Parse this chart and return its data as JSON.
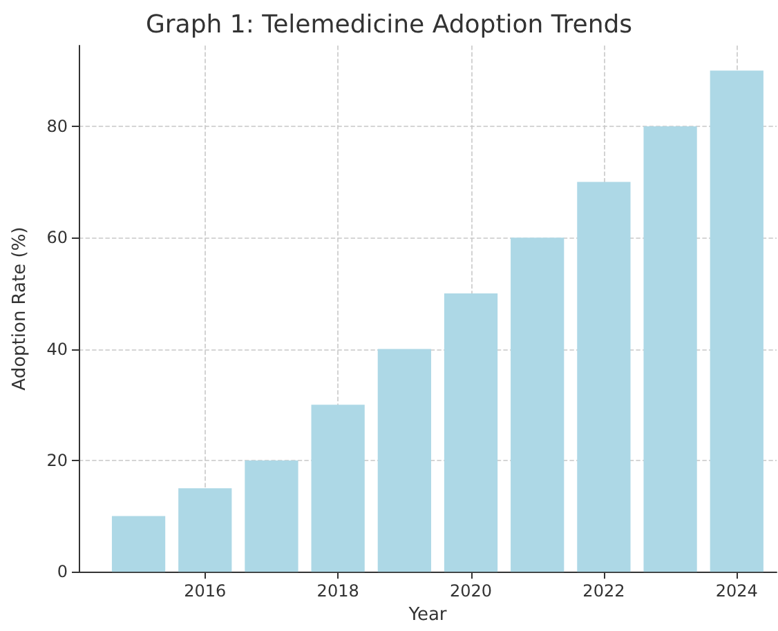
{
  "chart_data": {
    "type": "bar",
    "title": "Graph 1: Telemedicine Adoption Trends",
    "xlabel": "Year",
    "ylabel": "Adoption Rate (%)",
    "x": [
      2015,
      2016,
      2017,
      2018,
      2019,
      2020,
      2021,
      2022,
      2023,
      2024
    ],
    "values": [
      10,
      15,
      20,
      30,
      40,
      50,
      60,
      70,
      80,
      90
    ],
    "color": "#add8e6",
    "xlim": [
      2014.1,
      2024.6
    ],
    "xticks": [
      2016,
      2018,
      2020,
      2022,
      2024
    ],
    "ylim": [
      0,
      94.5
    ],
    "yticks": [
      0,
      20,
      40,
      60,
      80
    ],
    "grid": true
  }
}
